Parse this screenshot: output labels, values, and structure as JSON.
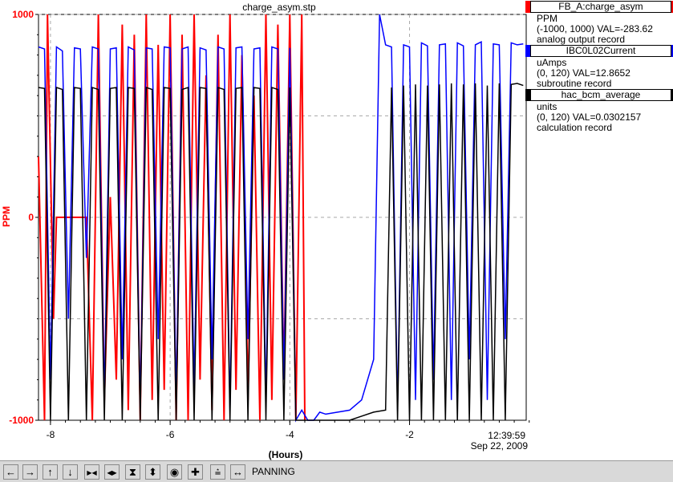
{
  "chart_data": {
    "type": "line",
    "title": "charge_asym.stp",
    "xlabel": "(Hours)",
    "ylabel": "PPM",
    "xlim": [
      -8.2,
      -0.05
    ],
    "ylim": [
      -1000,
      1000
    ],
    "y_ticks": [
      "1000",
      "0",
      "-1000"
    ],
    "x_ticks": [
      "-8",
      "-6",
      "-4",
      "-2"
    ],
    "time_label": "12:39:59",
    "date_label": "Sep 22, 2009",
    "grid": true,
    "series": [
      {
        "name": "FB_A:charge_asym",
        "color": "#ff0000",
        "x": [
          -8.2,
          -8.1,
          -8.05,
          -7.95,
          -7.9,
          -7.8,
          -7.7,
          -7.6,
          -7.5,
          -7.4,
          -7.3,
          -7.2,
          -7.1,
          -7.0,
          -6.9,
          -6.8,
          -6.7,
          -6.6,
          -6.5,
          -6.4,
          -6.3,
          -6.2,
          -6.1,
          -6.0,
          -5.9,
          -5.8,
          -5.7,
          -5.6,
          -5.5,
          -5.4,
          -5.3,
          -5.2,
          -5.1,
          -5.0,
          -4.9,
          -4.8,
          -4.7,
          -4.6,
          -4.5,
          -4.4,
          -4.3,
          -4.2,
          -4.1,
          -4.0,
          -3.9,
          -3.8,
          -3.75
        ],
        "values": [
          300,
          -1000,
          1000,
          -500,
          0,
          0,
          0,
          0,
          0,
          0,
          -1000,
          1000,
          -900,
          100,
          -800,
          950,
          -950,
          900,
          -1000,
          1000,
          -900,
          850,
          -850,
          1000,
          -1000,
          900,
          -1000,
          1000,
          -800,
          700,
          -950,
          900,
          -1000,
          1000,
          -850,
          800,
          -900,
          600,
          -1000,
          1000,
          -900,
          950,
          -800,
          1000,
          -1000,
          1000,
          -1000
        ]
      },
      {
        "name": "IBC0L02Current",
        "color": "#0000ff",
        "x": [
          -8.2,
          -8.1,
          -8.0,
          -7.9,
          -7.8,
          -7.7,
          -7.6,
          -7.5,
          -7.4,
          -7.3,
          -7.2,
          -7.1,
          -7.0,
          -6.9,
          -6.8,
          -6.7,
          -6.6,
          -6.5,
          -6.4,
          -6.3,
          -6.2,
          -6.1,
          -6.0,
          -5.9,
          -5.8,
          -5.7,
          -5.6,
          -5.5,
          -5.4,
          -5.3,
          -5.2,
          -5.1,
          -5.0,
          -4.9,
          -4.8,
          -4.7,
          -4.6,
          -4.5,
          -4.4,
          -4.3,
          -4.2,
          -4.1,
          -4.0,
          -3.9,
          -3.8,
          -3.7,
          -3.6,
          -3.5,
          -3.4,
          -3.2,
          -3.0,
          -2.8,
          -2.6,
          -2.5,
          -2.4,
          -2.3,
          -2.2,
          -2.1,
          -2.0,
          -1.9,
          -1.8,
          -1.7,
          -1.6,
          -1.5,
          -1.4,
          -1.3,
          -1.2,
          -1.1,
          -1.0,
          -0.9,
          -0.8,
          -0.7,
          -0.6,
          -0.5,
          -0.4,
          -0.3,
          -0.2,
          -0.1
        ],
        "values": [
          840,
          830,
          -800,
          840,
          820,
          -500,
          835,
          830,
          -200,
          840,
          830,
          -900,
          830,
          835,
          -700,
          840,
          825,
          -950,
          835,
          830,
          -600,
          840,
          835,
          -900,
          830,
          840,
          -850,
          835,
          825,
          -700,
          840,
          830,
          -950,
          835,
          840,
          -600,
          830,
          835,
          -900,
          840,
          830,
          -800,
          835,
          -1000,
          -950,
          -1000,
          -1000,
          -960,
          -970,
          -960,
          -950,
          -900,
          -700,
          1000,
          850,
          840,
          -950,
          850,
          840,
          -900,
          860,
          845,
          -800,
          850,
          855,
          -900,
          860,
          845,
          -700,
          850,
          865,
          -900,
          855,
          850,
          -600,
          860,
          850,
          855
        ]
      },
      {
        "name": "hac_bcm_average",
        "color": "#000000",
        "x": [
          -8.2,
          -8.1,
          -8.0,
          -7.9,
          -7.8,
          -7.7,
          -7.6,
          -7.5,
          -7.4,
          -7.3,
          -7.2,
          -7.1,
          -7.0,
          -6.9,
          -6.8,
          -6.7,
          -6.6,
          -6.5,
          -6.4,
          -6.3,
          -6.2,
          -6.1,
          -6.0,
          -5.9,
          -5.8,
          -5.7,
          -5.6,
          -5.5,
          -5.4,
          -5.3,
          -5.2,
          -5.1,
          -5.0,
          -4.9,
          -4.8,
          -4.7,
          -4.6,
          -4.5,
          -4.4,
          -4.3,
          -4.2,
          -4.1,
          -4.0,
          -3.9,
          -3.8,
          -3.7,
          -3.6,
          -3.4,
          -3.2,
          -3.0,
          -2.8,
          -2.6,
          -2.4,
          -2.3,
          -2.2,
          -2.1,
          -2.0,
          -1.9,
          -1.8,
          -1.7,
          -1.6,
          -1.5,
          -1.4,
          -1.3,
          -1.2,
          -1.1,
          -1.0,
          -0.9,
          -0.8,
          -0.7,
          -0.6,
          -0.5,
          -0.4,
          -0.3,
          -0.2,
          -0.1
        ],
        "values": [
          640,
          635,
          -1000,
          640,
          630,
          -1000,
          640,
          635,
          -1000,
          640,
          630,
          -1000,
          635,
          640,
          -1000,
          640,
          635,
          -1000,
          640,
          630,
          -1000,
          640,
          635,
          -1000,
          630,
          640,
          -1000,
          640,
          635,
          -1000,
          640,
          630,
          -1000,
          635,
          640,
          -1000,
          640,
          635,
          -1000,
          640,
          630,
          -1000,
          640,
          -1000,
          -1000,
          -1000,
          -1000,
          -1000,
          -1000,
          -1000,
          -980,
          -960,
          -950,
          640,
          -1000,
          650,
          -1000,
          655,
          -1000,
          650,
          -1000,
          655,
          -1000,
          660,
          -1000,
          655,
          -1000,
          660,
          -1000,
          650,
          -1000,
          660,
          -1000,
          655,
          660,
          650
        ]
      }
    ]
  },
  "legend": [
    {
      "name": "FB_A:charge_asym",
      "color": "#ff0000",
      "units": "PPM",
      "range_val": "(-1000, 1000) VAL=-283.62",
      "record": "analog output record"
    },
    {
      "name": "IBC0L02Current",
      "color": "#0000ff",
      "units": "uAmps",
      "range_val": "(0, 120) VAL=12.8652",
      "record": "subroutine record"
    },
    {
      "name": "hac_bcm_average",
      "color": "#000000",
      "units": "units",
      "range_val": "(0, 120) VAL=0.0302157",
      "record": "calculation record"
    }
  ],
  "toolbar": {
    "buttons": [
      {
        "name": "pan-left-button",
        "icon": "arrow-left-icon",
        "glyph": "←"
      },
      {
        "name": "pan-right-button",
        "icon": "arrow-right-icon",
        "glyph": "→"
      },
      {
        "name": "pan-up-button",
        "icon": "arrow-up-icon",
        "glyph": "↑"
      },
      {
        "name": "pan-down-button",
        "icon": "arrow-down-icon",
        "glyph": "↓"
      },
      {
        "name": "zoom-in-x-button",
        "icon": "zoom-in-x-icon",
        "glyph": "▶◀"
      },
      {
        "name": "zoom-out-x-button",
        "icon": "zoom-out-x-icon",
        "glyph": "◀▶"
      },
      {
        "name": "zoom-in-y-button",
        "icon": "zoom-in-y-icon",
        "glyph": "⧗"
      },
      {
        "name": "zoom-out-y-button",
        "icon": "zoom-out-y-icon",
        "glyph": "⬍"
      },
      {
        "name": "autoscale-button",
        "icon": "autoscale-icon",
        "glyph": "◉"
      },
      {
        "name": "zoom-box-button",
        "icon": "plus-icon",
        "glyph": "✚"
      },
      {
        "name": "reset-button",
        "icon": "reset-icon",
        "glyph": "⩮"
      },
      {
        "name": "pan-mode-button",
        "icon": "pan-icon",
        "glyph": "↔"
      }
    ],
    "mode_label": "PANNING"
  }
}
